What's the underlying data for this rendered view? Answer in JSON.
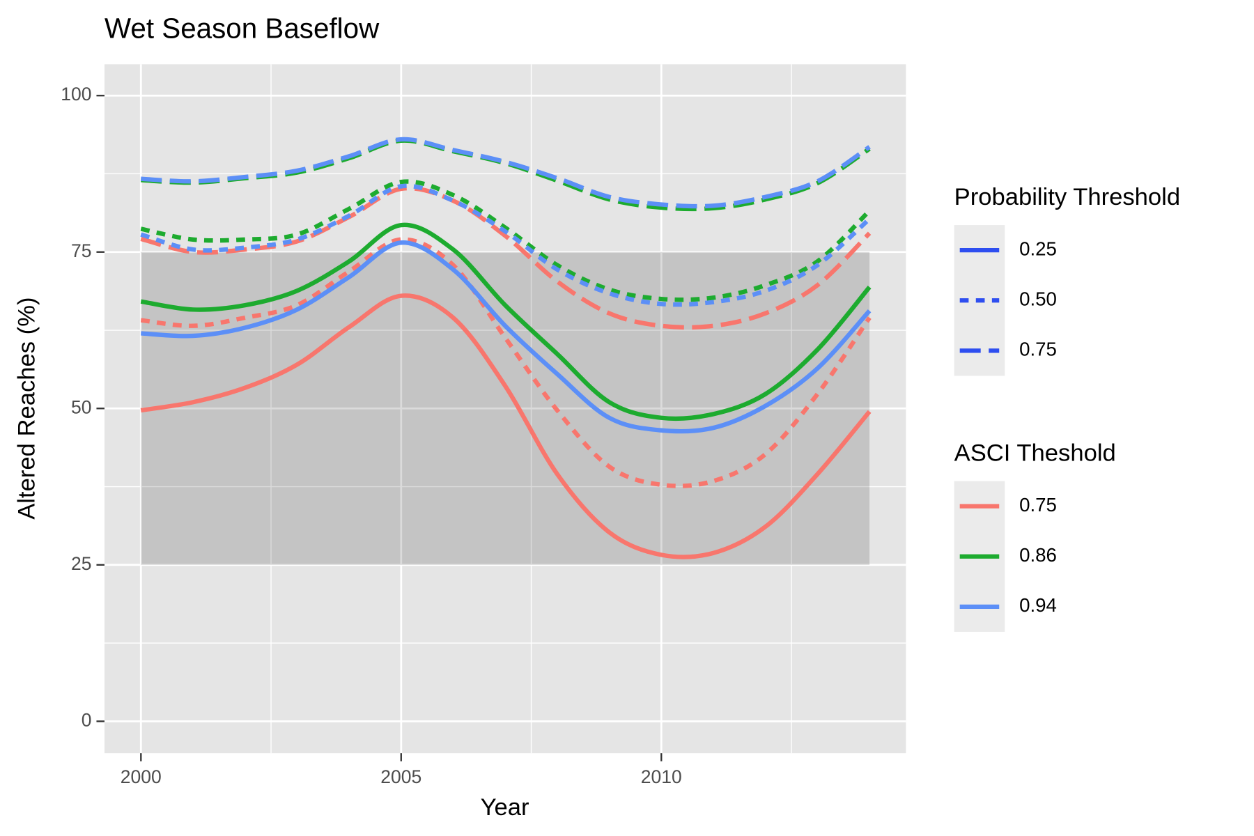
{
  "chart_data": {
    "type": "line",
    "title": "Wet Season Baseflow",
    "x_label": "Year",
    "y_label": "Altered Reaches (%)",
    "x": [
      2000,
      2001,
      2002,
      2003,
      2004,
      2005,
      2006,
      2007,
      2008,
      2009,
      2010,
      2011,
      2012,
      2013,
      2014
    ],
    "xlim": [
      1999.3,
      2014.7
    ],
    "xticks": [
      2000,
      2005,
      2010
    ],
    "xminorticks": [
      2002.5,
      2007.5,
      2012.5
    ],
    "ylim": [
      -5.1,
      105
    ],
    "yticks": [
      0,
      25,
      50,
      75,
      100
    ],
    "yminorticks": [
      12.5,
      37.5,
      62.5,
      87.5
    ],
    "grid": true,
    "band": {
      "xmin": 2000,
      "xmax": 2014,
      "ymin": 25,
      "ymax": 75,
      "color": "#000000",
      "alpha": 0.14
    },
    "series": [
      {
        "color": "#F8766D",
        "linetype": "solid",
        "values": [
          49.7,
          51,
          53.3,
          57,
          63,
          68,
          64.5,
          53.6,
          39.5,
          30.2,
          26.6,
          26.9,
          31.1,
          39.5,
          49.5
        ]
      },
      {
        "color": "#F8766D",
        "linetype": "dotted",
        "values": [
          64.1,
          63.2,
          64.5,
          66.5,
          71.9,
          77,
          72.9,
          61.3,
          49.7,
          40.7,
          37.8,
          38.4,
          42.7,
          52.3,
          64.5
        ]
      },
      {
        "color": "#F8766D",
        "linetype": "dashed",
        "values": [
          77.1,
          75,
          75.4,
          76.7,
          80.6,
          85.1,
          83.2,
          77.6,
          70.3,
          65.2,
          63.2,
          63.2,
          65.2,
          69.7,
          78
        ]
      },
      {
        "color": "#1DAB2F",
        "linetype": "solid",
        "values": [
          67.1,
          65.8,
          66.5,
          68.8,
          73.5,
          79.3,
          75.4,
          66.5,
          58.7,
          51,
          48.5,
          49.1,
          52.3,
          59.4,
          69.4
        ]
      },
      {
        "color": "#1DAB2F",
        "linetype": "dotted",
        "values": [
          78.7,
          77,
          77,
          77.8,
          81.9,
          86.2,
          84.1,
          78.9,
          72.9,
          69,
          67.5,
          67.7,
          69.7,
          73.5,
          81.6
        ]
      },
      {
        "color": "#1DAB2F",
        "linetype": "dashed",
        "values": [
          86.5,
          86.1,
          86.8,
          87.7,
          90,
          92.8,
          91.1,
          89.2,
          86.4,
          83.4,
          82.1,
          82,
          83.4,
          86,
          91.5
        ]
      },
      {
        "color": "#5C8FF7",
        "linetype": "solid",
        "values": [
          62,
          61.6,
          62.9,
          65.8,
          71,
          76.5,
          72.2,
          63.2,
          55.5,
          48.5,
          46.5,
          46.9,
          50.4,
          56.4,
          65.6
        ]
      },
      {
        "color": "#5C8FF7",
        "linetype": "dotted",
        "values": [
          77.8,
          75.4,
          75.7,
          77,
          80.8,
          85.5,
          83.2,
          78.3,
          72.2,
          68.4,
          66.7,
          67,
          68.8,
          72.9,
          80.3
        ]
      },
      {
        "color": "#5C8FF7",
        "linetype": "dashed",
        "values": [
          86.7,
          86.3,
          87,
          88,
          90.3,
          93,
          91.3,
          89.4,
          86.8,
          83.8,
          82.6,
          82.4,
          83.8,
          86.3,
          91.8
        ]
      }
    ],
    "legends": [
      {
        "title": "Probability Threshold",
        "color": "#2E4EF0",
        "entries": [
          {
            "label": "0.25",
            "linetype": "solid"
          },
          {
            "label": "0.50",
            "linetype": "dotted"
          },
          {
            "label": "0.75",
            "linetype": "dashed"
          }
        ]
      },
      {
        "title": "ASCI Theshold",
        "entries": [
          {
            "label": "0.75",
            "color": "#F8766D",
            "linetype": "solid"
          },
          {
            "label": "0.86",
            "color": "#1DAB2F",
            "linetype": "solid"
          },
          {
            "label": "0.94",
            "color": "#5C8FF7",
            "linetype": "solid"
          }
        ]
      }
    ]
  }
}
